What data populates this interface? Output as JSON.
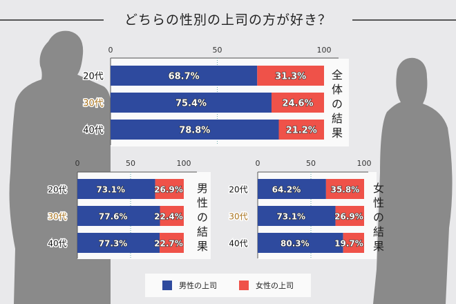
{
  "title": "どちらの性別の上司の方が好き？",
  "colors": {
    "male_boss": "#2e4a9e",
    "female_boss": "#ef5249",
    "age30_label": "#a8721c"
  },
  "legend": [
    {
      "label": "男性の上司",
      "color": "#2e4a9e"
    },
    {
      "label": "女性の上司",
      "color": "#ef5249"
    }
  ],
  "chart_data": [
    {
      "type": "bar",
      "stacked": true,
      "orientation": "horizontal",
      "title": "全体の結果",
      "categories": [
        "20代",
        "30代",
        "40代"
      ],
      "xlim": [
        0,
        100
      ],
      "ticks": [
        "0",
        "50",
        "100"
      ],
      "series": [
        {
          "name": "男性の上司",
          "values": [
            68.7,
            75.4,
            78.8
          ]
        },
        {
          "name": "女性の上司",
          "values": [
            31.3,
            24.6,
            21.2
          ]
        }
      ]
    },
    {
      "type": "bar",
      "stacked": true,
      "orientation": "horizontal",
      "title": "男性の結果",
      "categories": [
        "20代",
        "30代",
        "40代"
      ],
      "xlim": [
        0,
        100
      ],
      "ticks": [
        "0",
        "50",
        "100"
      ],
      "series": [
        {
          "name": "男性の上司",
          "values": [
            73.1,
            77.6,
            77.3
          ]
        },
        {
          "name": "女性の上司",
          "values": [
            26.9,
            22.4,
            22.7
          ]
        }
      ]
    },
    {
      "type": "bar",
      "stacked": true,
      "orientation": "horizontal",
      "title": "女性の結果",
      "categories": [
        "20代",
        "30代",
        "40代"
      ],
      "xlim": [
        0,
        100
      ],
      "ticks": [
        "0",
        "50",
        "100"
      ],
      "series": [
        {
          "name": "男性の上司",
          "values": [
            64.2,
            73.1,
            80.3
          ]
        },
        {
          "name": "女性の上司",
          "values": [
            35.8,
            26.9,
            19.7
          ]
        }
      ]
    }
  ]
}
